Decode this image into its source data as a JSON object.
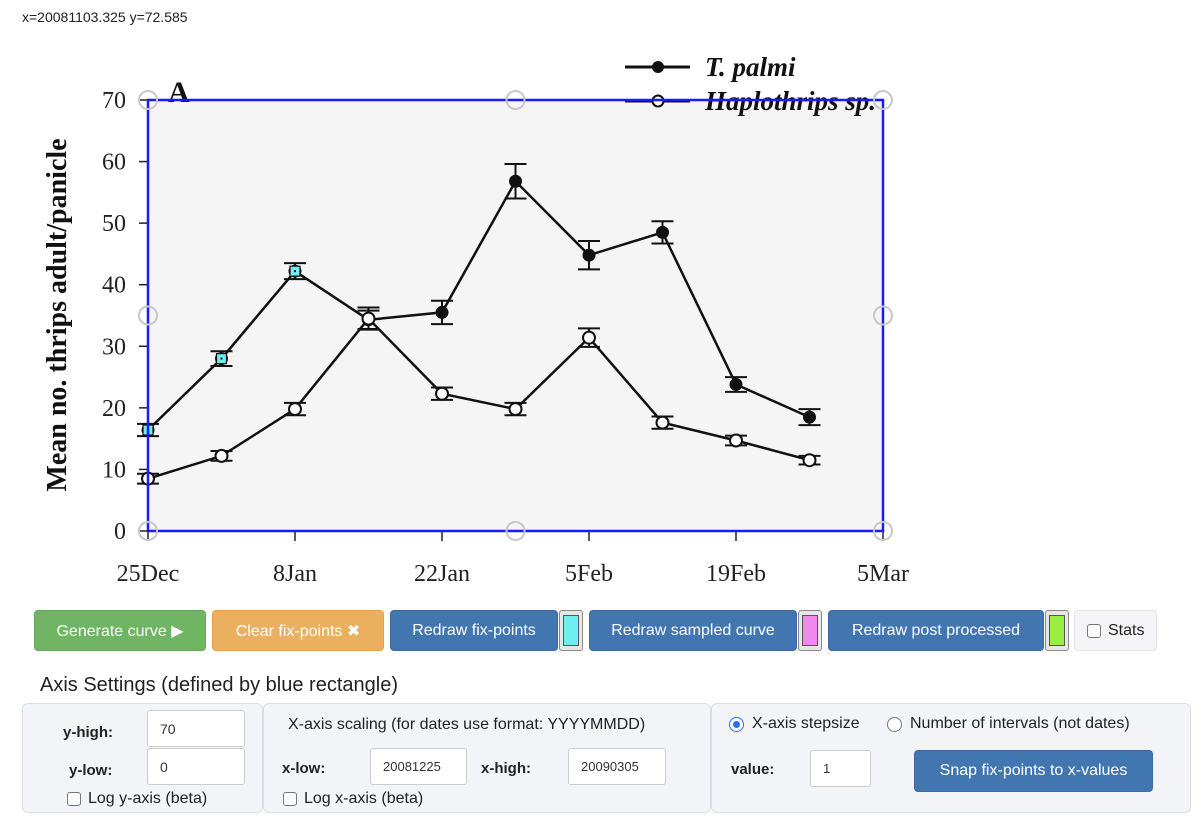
{
  "cursor_readout": "x=20081103.325 y=72.585",
  "chart_data": {
    "type": "line",
    "panel_label": "A",
    "title": "",
    "xlabel": "",
    "ylabel": "Mean no. thrips adult/panicle",
    "x_tick_labels": [
      "25Dec",
      "8Jan",
      "22Jan",
      "5Feb",
      "19Feb",
      "5Mar"
    ],
    "x_tick_days": [
      0,
      14,
      28,
      42,
      56,
      70
    ],
    "y_ticks": [
      0,
      10,
      20,
      30,
      40,
      50,
      60,
      70
    ],
    "ylim": [
      0,
      70
    ],
    "xlim_days": [
      0,
      70
    ],
    "legend_position": "top-right",
    "x": [
      0,
      7,
      14,
      21,
      28,
      35,
      42,
      49,
      56,
      63
    ],
    "x_dates": [
      "25Dec",
      "1Jan",
      "8Jan",
      "15Jan",
      "22Jan",
      "29Jan",
      "5Feb",
      "12Feb",
      "19Feb",
      "26Feb"
    ],
    "series": [
      {
        "name": "T. palmi",
        "marker": "filled-circle",
        "values": [
          16.4,
          28.0,
          42.2,
          34.3,
          35.5,
          56.8,
          44.8,
          48.5,
          23.8,
          18.5
        ],
        "errors": [
          1.0,
          1.2,
          1.3,
          1.5,
          1.9,
          2.8,
          2.3,
          1.8,
          1.2,
          1.3
        ]
      },
      {
        "name": "Haplothrips sp.",
        "marker": "open-circle",
        "values": [
          8.5,
          12.2,
          19.8,
          34.5,
          22.3,
          19.8,
          31.4,
          17.6,
          14.7,
          11.5
        ],
        "errors": [
          0.8,
          0.8,
          1.0,
          1.8,
          1.0,
          1.0,
          1.5,
          1.0,
          0.8,
          0.7
        ]
      }
    ],
    "fix_points": [
      {
        "day": 0,
        "value": 16.4
      },
      {
        "day": 7,
        "value": 28.0
      },
      {
        "day": 14,
        "value": 42.2
      }
    ]
  },
  "colors": {
    "axis_rect": "#1a1aff",
    "fix_point": "#6eeeee",
    "sampled_curve": "#ee88ee",
    "post_processed": "#99ee44",
    "btn_green": "#6fb563",
    "btn_orange": "#eaaf5f",
    "btn_blue": "#4276b0"
  },
  "toolbar": {
    "generate_label": "Generate curve ▶",
    "clear_label": "Clear fix-points ✖",
    "redraw_fix_label": "Redraw fix-points",
    "redraw_sampled_label": "Redraw sampled curve",
    "redraw_post_label": "Redraw post processed",
    "stats_label": "Stats"
  },
  "axis_settings": {
    "title": "Axis Settings (defined by blue rectangle)",
    "y": {
      "high_label": "y-high:",
      "high_value": "70",
      "low_label": "y-low:",
      "low_value": "0",
      "log_label": "Log y-axis (beta)"
    },
    "x": {
      "heading": "X-axis scaling (for dates use format: YYYYMMDD)",
      "low_label": "x-low:",
      "low_value": "20081225",
      "high_label": "x-high:",
      "high_value": "20090305",
      "log_label": "Log x-axis (beta)"
    },
    "step": {
      "radio_stepsize_label": "X-axis stepsize",
      "radio_intervals_label": "Number of intervals (not dates)",
      "value_label": "value:",
      "value": "1",
      "snap_label": "Snap fix-points to x-values"
    }
  }
}
